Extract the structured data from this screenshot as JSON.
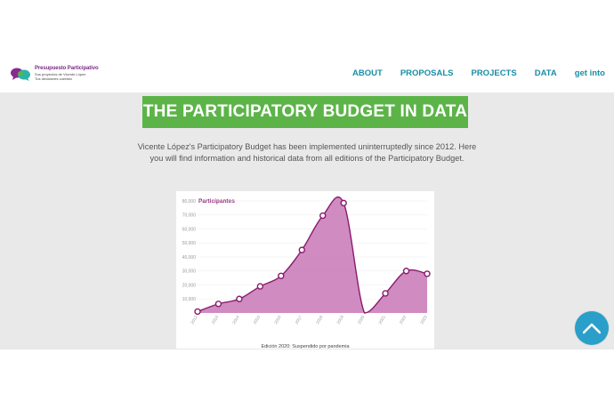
{
  "logo": {
    "title": "Presupuesto Participativo",
    "subtitle_1": "Sus proyectos de Vicente López",
    "subtitle_2": "Tus decisiones cuentan"
  },
  "nav": {
    "items": [
      {
        "label": "ABOUT"
      },
      {
        "label": "PROPOSALS"
      },
      {
        "label": "PROJECTS"
      },
      {
        "label": "DATA"
      },
      {
        "label": "get into"
      }
    ]
  },
  "page_title": "THE PARTICIPATORY BUDGET IN DATA",
  "intro": "Vicente López's Participatory Budget has been implemented uninterruptedly since 2012. Here you will find information and historical data from all editions of the Participatory Budget.",
  "colors": {
    "accent": "#1a8ea6",
    "title_bg": "#5cb448",
    "line": "#8a1a6e",
    "area": "#c877b6",
    "scroll_button": "#2a9fc9"
  },
  "chart_data": {
    "type": "area",
    "title": "Participantes",
    "x": [
      "2012",
      "2013",
      "2014",
      "2015",
      "2016",
      "2017",
      "2018",
      "2019",
      "2020",
      "2021",
      "2022",
      "2023"
    ],
    "series": [
      {
        "name": "Participantes",
        "values": [
          1000,
          6500,
          10000,
          19000,
          26500,
          45000,
          69500,
          78500,
          null,
          14000,
          30000,
          28000
        ]
      }
    ],
    "y_ticks": [
      "10,000",
      "20,000",
      "30,000",
      "40,000",
      "50,000",
      "60,000",
      "70,000",
      "80,000"
    ],
    "ylim": [
      0,
      80000
    ],
    "footnote": "Edición 2020: Suspendido por pandemia"
  }
}
